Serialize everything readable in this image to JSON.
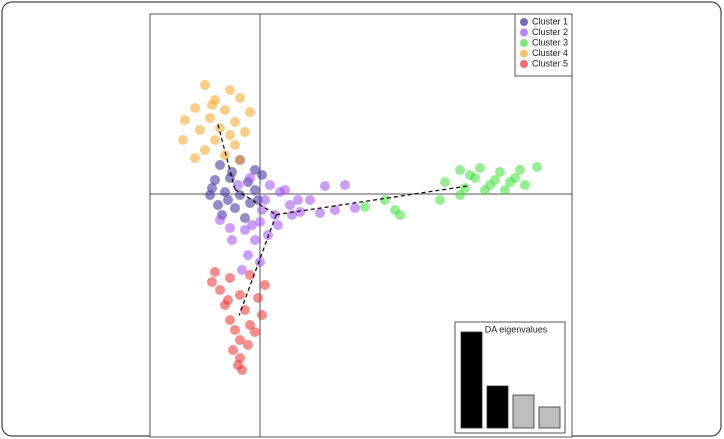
{
  "chart_data": [
    {
      "type": "scatter",
      "xlim": [
        -11,
        31.2
      ],
      "ylim": [
        -24.3,
        18
      ],
      "legend": "top-right",
      "series": [
        {
          "name": "Cluster 1",
          "color": "#3b2a9c",
          "x": [
            -4,
            -2,
            -0.5,
            -4.5,
            -3,
            -1.2,
            0.2,
            -5,
            -3.5,
            -2,
            -0.5,
            -4.2,
            -2.5,
            -1,
            -3.8,
            -1.5,
            -2.8,
            -3.2,
            -4.8,
            -0.2
          ],
          "values": [
            2.9,
            3.4,
            2.4,
            1.4,
            1.6,
            1.2,
            1.9,
            -0.1,
            0.2,
            -0.1,
            0.4,
            -1.1,
            -1.4,
            -0.9,
            -2.1,
            -2.4,
            2.2,
            -0.6,
            0.6,
            -0.6
          ]
        },
        {
          "name": "Cluster 2",
          "color": "#a24ef5",
          "x": [
            -1,
            1,
            2,
            0.5,
            3,
            4,
            5,
            6.5,
            8.5,
            6,
            7.5,
            9.5,
            1.5,
            0,
            -1.5,
            -3,
            -4,
            -0.5,
            0.8,
            -1.2,
            0,
            -1.8,
            2.5,
            3.8,
            -2.2,
            0.2,
            -0.8,
            1.8,
            -2.8,
            3.2
          ],
          "values": [
            1.6,
            0.9,
            0.2,
            -0.6,
            -1.1,
            -1.8,
            -0.6,
            0.8,
            0.9,
            -1.9,
            -1.6,
            -1.4,
            -2.1,
            -2.8,
            -3.6,
            -3.4,
            -2.6,
            -4.6,
            -4.1,
            -6.1,
            -6.8,
            -7.6,
            0.4,
            -0.6,
            0.9,
            -1.6,
            -3.1,
            -3.1,
            -4.6,
            -2.1
          ]
        },
        {
          "name": "Cluster 3",
          "color": "#3fe03a",
          "x": [
            20,
            22,
            24,
            26,
            27.7,
            21.5,
            23.5,
            25,
            26.5,
            18.5,
            20.5,
            22.5,
            24.5,
            20,
            18,
            14,
            13.5,
            10.5,
            12.5,
            21,
            23,
            25.5
          ],
          "values": [
            2.4,
            2.6,
            2.2,
            2.4,
            2.7,
            1.6,
            1.4,
            1.2,
            0.9,
            1.2,
            0.6,
            0.4,
            0.4,
            -0.1,
            -0.6,
            -2.1,
            -1.6,
            -1.3,
            -0.6,
            1.9,
            0.9,
            1.6
          ]
        },
        {
          "name": "Cluster 4",
          "color": "#f5a623",
          "x": [
            -5.5,
            -3,
            -4.5,
            -2,
            -6.5,
            -3.5,
            -1,
            -7.5,
            -5,
            -2.5,
            -6,
            -4,
            -1.5,
            -7.7,
            -4.5,
            -2.5,
            -5.5,
            -3.5,
            -2,
            -6.5,
            -3,
            -4.8
          ],
          "values": [
            10.9,
            10.4,
            9.4,
            9.6,
            8.6,
            8.4,
            8.2,
            7.4,
            7.6,
            7.2,
            6.4,
            6.6,
            6.2,
            5.4,
            5.4,
            4.9,
            4.4,
            3.9,
            3.4,
            3.6,
            5.9,
            8.9
          ]
        },
        {
          "name": "Cluster 5",
          "color": "#ec2f2f",
          "x": [
            -4.5,
            -3,
            -1,
            0.5,
            -4,
            -2,
            -0.2,
            -3.5,
            -1.5,
            0.2,
            -3,
            -1,
            -2.5,
            -0.5,
            -2,
            -1.2,
            -2.7,
            -2,
            -2.2,
            -1.8,
            -4.8,
            -3.2
          ],
          "values": [
            -7.8,
            -8.4,
            -8.1,
            -9.1,
            -9.6,
            -10.1,
            -10.4,
            -11.1,
            -11.6,
            -12.1,
            -12.6,
            -13.1,
            -13.6,
            -13.8,
            -14.6,
            -15.1,
            -15.6,
            -16.4,
            -17.1,
            -17.6,
            -8.8,
            -10.6
          ]
        }
      ]
    },
    {
      "type": "bar",
      "title": "DA eigenvalues",
      "ylim": [
        0,
        100
      ],
      "values": [
        96,
        42,
        33,
        21
      ],
      "colors": [
        "#000000",
        "#000000",
        "#bdbdbd",
        "#bdbdbd"
      ]
    }
  ]
}
